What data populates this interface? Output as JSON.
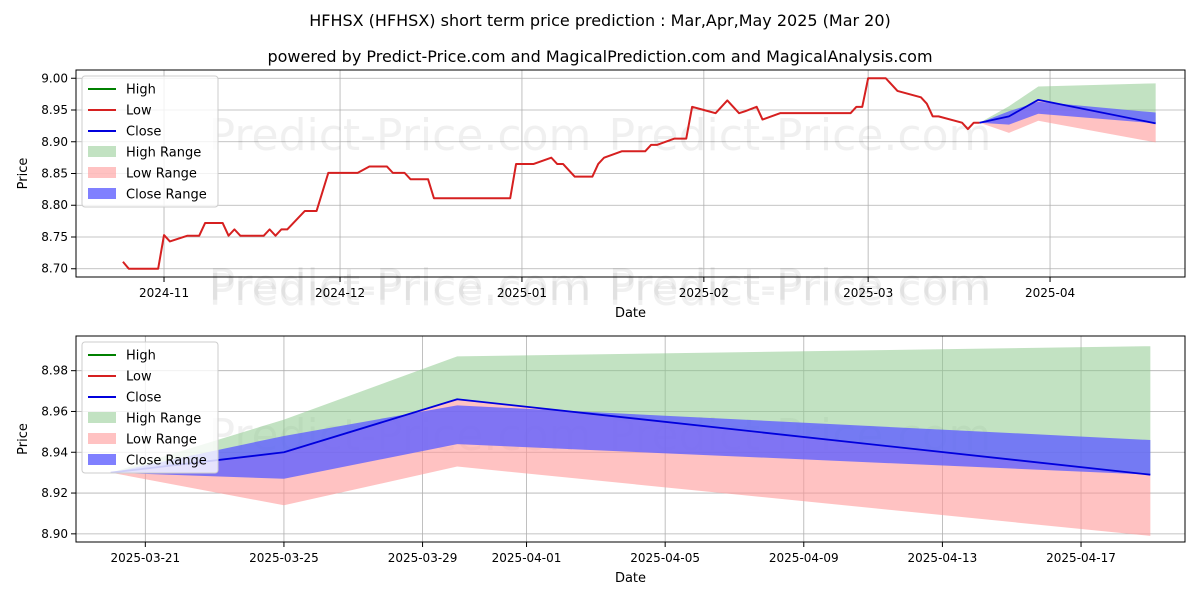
{
  "header": {
    "title": "HFHSX (HFHSX) short term price prediction : Mar,Apr,May 2025 (Mar 20)",
    "subtitle": "powered by Predict-Price.com and MagicalPrediction.com and MagicalAnalysis.com"
  },
  "watermark": "Predict-Price.com",
  "colors": {
    "high": "#008000",
    "low": "#d62020",
    "close": "#0000dd",
    "high_range": "#8fca8f",
    "low_range": "#ff9999",
    "close_range": "#6060ff"
  },
  "chart_data": [
    {
      "type": "line",
      "xlabel": "Date",
      "ylabel": "Price",
      "xlim": [
        "2024-10-17",
        "2025-04-24"
      ],
      "ylim": [
        8.687,
        9.013
      ],
      "x_ticks": [
        "2024-11-01",
        "2024-12-01",
        "2025-01-01",
        "2025-02-01",
        "2025-03-01",
        "2025-04-01"
      ],
      "x_tick_labels": [
        "2024-11",
        "2024-12",
        "2025-01",
        "2025-02",
        "2025-03",
        "2025-04"
      ],
      "y_ticks": [
        8.7,
        8.75,
        8.8,
        8.85,
        8.9,
        8.95,
        9.0
      ],
      "y_tick_labels": [
        "8.70",
        "8.75",
        "8.80",
        "8.85",
        "8.90",
        "8.95",
        "9.00"
      ],
      "grid": true,
      "legend": "top-left",
      "legend_entries": [
        "High",
        "Low",
        "Close",
        "High Range",
        "Low Range",
        "Close Range"
      ],
      "history": {
        "x": [
          "2024-10-25",
          "2024-10-26",
          "2024-10-31",
          "2024-11-01",
          "2024-11-02",
          "2024-11-05",
          "2024-11-07",
          "2024-11-08",
          "2024-11-11",
          "2024-11-12",
          "2024-11-13",
          "2024-11-14",
          "2024-11-18",
          "2024-11-19",
          "2024-11-20",
          "2024-11-21",
          "2024-11-22",
          "2024-11-25",
          "2024-11-27",
          "2024-11-28",
          "2024-11-29",
          "2024-12-02",
          "2024-12-04",
          "2024-12-06",
          "2024-12-09",
          "2024-12-10",
          "2024-12-12",
          "2024-12-13",
          "2024-12-16",
          "2024-12-17",
          "2024-12-19",
          "2024-12-20",
          "2024-12-30",
          "2024-12-31",
          "2025-01-03",
          "2025-01-06",
          "2025-01-07",
          "2025-01-08",
          "2025-01-10",
          "2025-01-13",
          "2025-01-14",
          "2025-01-15",
          "2025-01-18",
          "2025-01-22",
          "2025-01-23",
          "2025-01-24",
          "2025-01-27",
          "2025-01-29",
          "2025-01-30",
          "2025-02-01",
          "2025-02-03",
          "2025-02-05",
          "2025-02-07",
          "2025-02-08",
          "2025-02-10",
          "2025-02-11",
          "2025-02-14",
          "2025-02-26",
          "2025-02-27",
          "2025-02-28",
          "2025-03-01",
          "2025-03-04",
          "2025-03-05",
          "2025-03-06",
          "2025-03-10",
          "2025-03-11",
          "2025-03-12",
          "2025-03-13",
          "2025-03-17",
          "2025-03-18",
          "2025-03-19",
          "2025-03-20"
        ],
        "y": [
          8.711,
          8.7,
          8.7,
          8.753,
          8.743,
          8.752,
          8.752,
          8.772,
          8.772,
          8.752,
          8.762,
          8.752,
          8.752,
          8.762,
          8.752,
          8.762,
          8.762,
          8.791,
          8.791,
          8.821,
          8.851,
          8.851,
          8.851,
          8.861,
          8.861,
          8.851,
          8.851,
          8.841,
          8.841,
          8.811,
          8.811,
          8.811,
          8.811,
          8.865,
          8.865,
          8.875,
          8.865,
          8.865,
          8.845,
          8.845,
          8.865,
          8.875,
          8.885,
          8.885,
          8.895,
          8.895,
          8.905,
          8.905,
          8.955,
          8.95,
          8.945,
          8.965,
          8.945,
          8.948,
          8.955,
          8.935,
          8.945,
          8.945,
          8.955,
          8.955,
          9.0,
          9.0,
          8.99,
          8.98,
          8.97,
          8.96,
          8.94,
          8.94,
          8.93,
          8.92,
          8.93,
          8.93
        ]
      },
      "forecast": {
        "x": [
          "2025-03-20",
          "2025-03-25",
          "2025-03-30",
          "2025-04-19"
        ],
        "close": [
          8.93,
          8.94,
          8.966,
          8.929
        ],
        "close_upper": [
          8.93,
          8.948,
          8.963,
          8.946
        ],
        "close_lower": [
          8.93,
          8.927,
          8.944,
          8.929
        ],
        "high_upper": [
          8.93,
          8.956,
          8.987,
          8.992
        ],
        "low_lower": [
          8.93,
          8.914,
          8.933,
          8.899
        ]
      }
    },
    {
      "type": "line",
      "xlabel": "Date",
      "ylabel": "Price",
      "xlim": [
        "2025-03-19",
        "2025-04-20"
      ],
      "ylim": [
        8.896,
        8.997
      ],
      "x_ticks": [
        "2025-03-21",
        "2025-03-25",
        "2025-03-29",
        "2025-04-01",
        "2025-04-05",
        "2025-04-09",
        "2025-04-13",
        "2025-04-17"
      ],
      "x_tick_labels": [
        "2025-03-21",
        "2025-03-25",
        "2025-03-29",
        "2025-04-01",
        "2025-04-05",
        "2025-04-09",
        "2025-04-13",
        "2025-04-17"
      ],
      "y_ticks": [
        8.9,
        8.92,
        8.94,
        8.96,
        8.98
      ],
      "y_tick_labels": [
        "8.90",
        "8.92",
        "8.94",
        "8.96",
        "8.98"
      ],
      "grid": true,
      "legend": "top-left",
      "legend_entries": [
        "High",
        "Low",
        "Close",
        "High Range",
        "Low Range",
        "Close Range"
      ],
      "forecast": {
        "x": [
          "2025-03-20",
          "2025-03-25",
          "2025-03-30",
          "2025-04-19"
        ],
        "close": [
          8.93,
          8.94,
          8.966,
          8.929
        ],
        "close_upper": [
          8.93,
          8.948,
          8.963,
          8.946
        ],
        "close_lower": [
          8.93,
          8.927,
          8.944,
          8.929
        ],
        "high_upper": [
          8.93,
          8.956,
          8.987,
          8.992
        ],
        "low_lower": [
          8.93,
          8.914,
          8.933,
          8.899
        ]
      }
    }
  ]
}
